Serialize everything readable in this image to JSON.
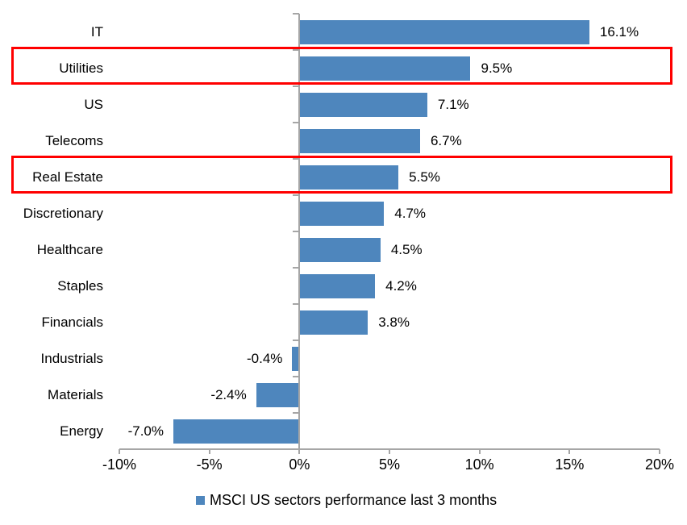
{
  "chart_data": {
    "type": "bar",
    "orientation": "horizontal",
    "categories": [
      "IT",
      "Utilities",
      "US",
      "Telecoms",
      "Real Estate",
      "Discretionary",
      "Healthcare",
      "Staples",
      "Financials",
      "Industrials",
      "Materials",
      "Energy"
    ],
    "values": [
      16.1,
      9.5,
      7.1,
      6.7,
      5.5,
      4.7,
      4.5,
      4.2,
      3.8,
      -0.4,
      -2.4,
      -7.0
    ],
    "data_labels": [
      "16.1%",
      "9.5%",
      "7.1%",
      "6.7%",
      "5.5%",
      "4.7%",
      "4.5%",
      "4.2%",
      "3.8%",
      "-0.4%",
      "-2.4%",
      "-7.0%"
    ],
    "x_ticks": [
      {
        "value": -10,
        "label": "-10%"
      },
      {
        "value": -5,
        "label": "-5%"
      },
      {
        "value": 0,
        "label": "0%"
      },
      {
        "value": 5,
        "label": "5%"
      },
      {
        "value": 10,
        "label": "10%"
      },
      {
        "value": 15,
        "label": "15%"
      },
      {
        "value": 20,
        "label": "20%"
      }
    ],
    "xlim": [
      -10,
      20
    ],
    "grid": false,
    "legend": "MSCI US sectors performance last 3 months",
    "legend_position": "bottom",
    "bar_color": "#4E86BD",
    "axis_color": "#A6A6A6",
    "highlight_color": "#FF0000",
    "highlighted_categories": [
      "Utilities",
      "Real Estate"
    ]
  }
}
